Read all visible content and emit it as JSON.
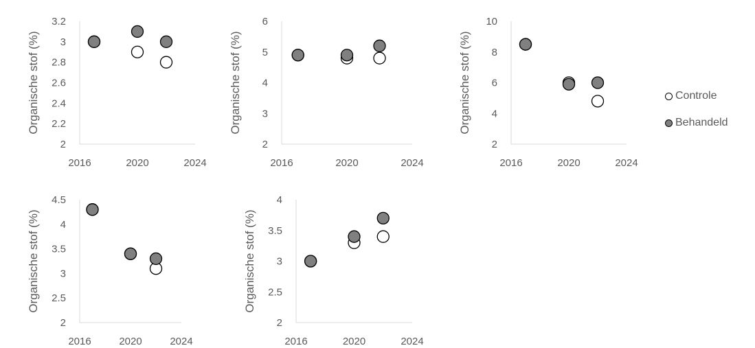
{
  "colors": {
    "controle": "#ffffff",
    "behandeld": "#808080",
    "axis": "#d9d9d9",
    "text": "#595959",
    "marker_edge": "#000000"
  },
  "legend": {
    "placement": "right",
    "items": [
      {
        "label": "Controle",
        "series": "controle"
      },
      {
        "label": "Behandeld",
        "series": "behandeld"
      }
    ]
  },
  "chart_data": [
    {
      "type": "scatter",
      "ylabel": "Organische stof (%)",
      "xlim": [
        2016,
        2024
      ],
      "xticks": [
        "2016",
        "2020",
        "2024"
      ],
      "ylim": [
        2,
        3.2
      ],
      "yticks": [
        "2",
        "2.2",
        "2.4",
        "2.6",
        "2.8",
        "3",
        "3.2"
      ],
      "grid": false,
      "series": [
        {
          "name": "Controle",
          "key": "controle",
          "x": [
            2017,
            2020,
            2022
          ],
          "y": [
            3.0,
            2.9,
            2.8
          ]
        },
        {
          "name": "Behandeld",
          "key": "behandeld",
          "x": [
            2017,
            2020,
            2022
          ],
          "y": [
            3.0,
            3.1,
            3.0
          ]
        }
      ]
    },
    {
      "type": "scatter",
      "ylabel": "Organische stof (%)",
      "xlim": [
        2016,
        2024
      ],
      "xticks": [
        "2016",
        "2020",
        "2024"
      ],
      "ylim": [
        2,
        6
      ],
      "yticks": [
        "2",
        "3",
        "4",
        "5",
        "6"
      ],
      "grid": false,
      "series": [
        {
          "name": "Controle",
          "key": "controle",
          "x": [
            2017,
            2020,
            2022
          ],
          "y": [
            4.9,
            4.8,
            4.8
          ]
        },
        {
          "name": "Behandeld",
          "key": "behandeld",
          "x": [
            2017,
            2020,
            2022
          ],
          "y": [
            4.9,
            4.9,
            5.2
          ]
        }
      ]
    },
    {
      "type": "scatter",
      "ylabel": "Organische stof (%)",
      "xlim": [
        2016,
        2024
      ],
      "xticks": [
        "2016",
        "2020",
        "2024"
      ],
      "ylim": [
        2,
        10
      ],
      "yticks": [
        "2",
        "4",
        "6",
        "8",
        "10"
      ],
      "grid": false,
      "series": [
        {
          "name": "Controle",
          "key": "controle",
          "x": [
            2017,
            2020,
            2022
          ],
          "y": [
            8.5,
            6.0,
            4.8
          ]
        },
        {
          "name": "Behandeld",
          "key": "behandeld",
          "x": [
            2017,
            2020,
            2022
          ],
          "y": [
            8.5,
            5.9,
            6.0
          ]
        }
      ]
    },
    {
      "type": "scatter",
      "ylabel": "Organische stof (%)",
      "xlim": [
        2016,
        2024
      ],
      "xticks": [
        "2016",
        "2020",
        "2024"
      ],
      "ylim": [
        2,
        4.5
      ],
      "yticks": [
        "2",
        "2.5",
        "3",
        "3.5",
        "4",
        "4.5"
      ],
      "grid": false,
      "series": [
        {
          "name": "Controle",
          "key": "controle",
          "x": [
            2017,
            2020,
            2022
          ],
          "y": [
            4.3,
            3.4,
            3.1
          ]
        },
        {
          "name": "Behandeld",
          "key": "behandeld",
          "x": [
            2017,
            2020,
            2022
          ],
          "y": [
            4.3,
            3.4,
            3.3
          ]
        }
      ]
    },
    {
      "type": "scatter",
      "ylabel": "Organische stof (%)",
      "xlim": [
        2016,
        2024
      ],
      "xticks": [
        "2016",
        "2020",
        "2024"
      ],
      "ylim": [
        2,
        4
      ],
      "yticks": [
        "2",
        "2.5",
        "3",
        "3.5",
        "4"
      ],
      "grid": false,
      "series": [
        {
          "name": "Controle",
          "key": "controle",
          "x": [
            2017,
            2020,
            2022
          ],
          "y": [
            3.0,
            3.3,
            3.4
          ]
        },
        {
          "name": "Behandeld",
          "key": "behandeld",
          "x": [
            2017,
            2020,
            2022
          ],
          "y": [
            3.0,
            3.4,
            3.7
          ]
        }
      ]
    }
  ]
}
